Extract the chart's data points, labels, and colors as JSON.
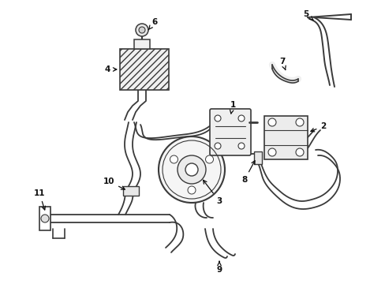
{
  "background_color": "#ffffff",
  "line_color": "#3a3a3a",
  "line_width": 1.1,
  "label_color": "#111111",
  "label_fontsize": 7.5,
  "arrow_color": "#111111",
  "fig_width": 4.89,
  "fig_height": 3.6,
  "dpi": 100
}
